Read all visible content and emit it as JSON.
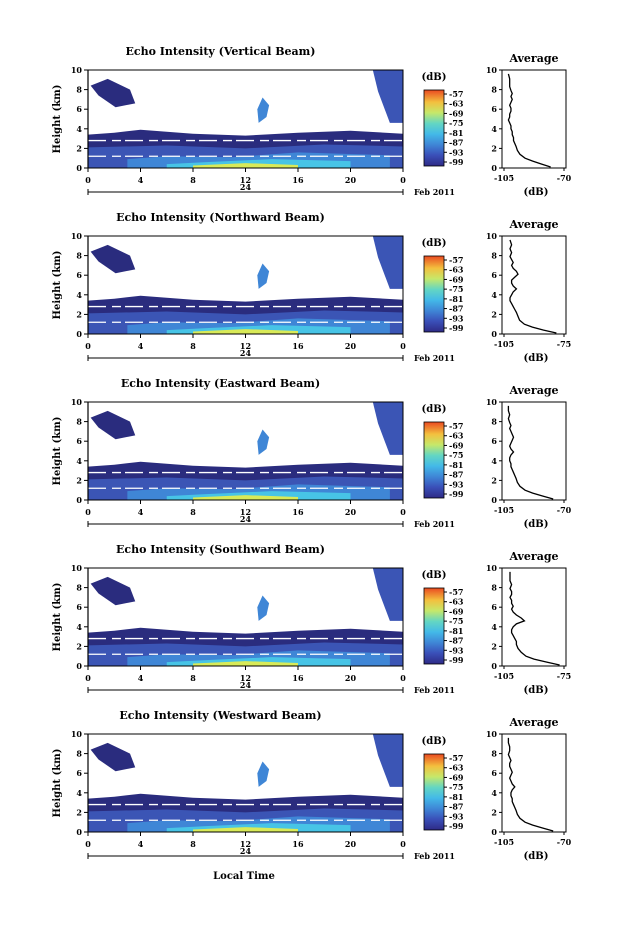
{
  "figure": {
    "xlabel": "Local Time"
  },
  "chart_data": [
    {
      "type": "heatmap",
      "title": "Echo Intensity (Vertical Beam)",
      "ylabel": "Height (km)",
      "ylim": [
        0,
        10
      ],
      "yticks": [
        "0",
        "2",
        "4",
        "6",
        "8",
        "10"
      ],
      "xlim": [
        0,
        24
      ],
      "xticks": [
        "0",
        "4",
        "8",
        "12",
        "16",
        "20",
        "0"
      ],
      "date_day": "24",
      "date_month": "Feb 2011",
      "colorbar_unit": "(dB)",
      "colorbar_ticks": [
        "-57",
        "-63",
        "-69",
        "-75",
        "-81",
        "-87",
        "-93",
        "-99"
      ],
      "profile": {
        "title": "Average",
        "xlabel": "(dB)",
        "xticks": [
          "-105",
          "-70"
        ],
        "xlim": [
          -110,
          -60
        ],
        "yticks": [
          "0",
          "2",
          "4",
          "6",
          "8",
          "10"
        ],
        "x": [
          -72,
          -79,
          -86,
          -92,
          -96,
          -98,
          -99,
          -100,
          -101,
          -101,
          -102,
          -102,
          -103,
          -103,
          -104,
          -105,
          -104,
          -104,
          -103,
          -103,
          -104,
          -103,
          -102,
          -103,
          -102,
          -103,
          -104,
          -104,
          -104,
          -105
        ],
        "y": [
          0.1,
          0.4,
          0.7,
          1.0,
          1.4,
          1.8,
          2.2,
          2.5,
          2.8,
          3.1,
          3.4,
          3.7,
          4.0,
          4.3,
          4.6,
          4.9,
          5.2,
          5.5,
          5.8,
          6.1,
          6.4,
          6.7,
          7.0,
          7.3,
          7.6,
          7.9,
          8.3,
          8.7,
          9.1,
          9.6
        ]
      }
    },
    {
      "type": "heatmap",
      "title": "Echo Intensity (Northward Beam)",
      "ylabel": "Height (km)",
      "ylim": [
        0,
        10
      ],
      "yticks": [
        "0",
        "2",
        "4",
        "6",
        "8",
        "10"
      ],
      "xlim": [
        0,
        24
      ],
      "xticks": [
        "0",
        "4",
        "8",
        "12",
        "16",
        "20",
        "0"
      ],
      "date_day": "24",
      "date_month": "Feb 2011",
      "colorbar_unit": "(dB)",
      "colorbar_ticks": [
        "-57",
        "-63",
        "-69",
        "-75",
        "-81",
        "-87",
        "-93",
        "-99"
      ],
      "profile": {
        "title": "Average",
        "xlabel": "(dB)",
        "xticks": [
          "-105",
          "-75"
        ],
        "xlim": [
          -110,
          -70
        ],
        "yticks": [
          "0",
          "2",
          "4",
          "6",
          "8",
          "10"
        ],
        "x": [
          -76,
          -84,
          -91,
          -96,
          -99,
          -100,
          -101,
          -102,
          -103,
          -104,
          -105,
          -105,
          -104,
          -103,
          -101,
          -103,
          -104,
          -104,
          -102,
          -100,
          -101,
          -103,
          -104,
          -103,
          -104,
          -105,
          -104,
          -105,
          -104,
          -105
        ],
        "y": [
          0.1,
          0.4,
          0.7,
          1.0,
          1.4,
          1.8,
          2.2,
          2.5,
          2.8,
          3.1,
          3.4,
          3.7,
          4.0,
          4.3,
          4.6,
          4.9,
          5.2,
          5.5,
          5.8,
          6.1,
          6.4,
          6.7,
          7.0,
          7.3,
          7.6,
          7.9,
          8.3,
          8.7,
          9.1,
          9.6
        ]
      }
    },
    {
      "type": "heatmap",
      "title": "Echo Intensity (Eastward Beam)",
      "ylabel": "Height (km)",
      "ylim": [
        0,
        10
      ],
      "yticks": [
        "0",
        "2",
        "4",
        "6",
        "8",
        "10"
      ],
      "xlim": [
        0,
        24
      ],
      "xticks": [
        "0",
        "4",
        "8",
        "12",
        "16",
        "20",
        "0"
      ],
      "date_day": "24",
      "date_month": "Feb 2011",
      "colorbar_unit": "(dB)",
      "colorbar_ticks": [
        "-57",
        "-63",
        "-69",
        "-75",
        "-81",
        "-87",
        "-93",
        "-99"
      ],
      "profile": {
        "title": "Average",
        "xlabel": "(dB)",
        "xticks": [
          "-105",
          "-70"
        ],
        "xlim": [
          -110,
          -60
        ],
        "yticks": [
          "0",
          "2",
          "4",
          "6",
          "8",
          "10"
        ],
        "x": [
          -70,
          -78,
          -86,
          -92,
          -96,
          -98,
          -99,
          -100,
          -101,
          -102,
          -103,
          -103,
          -104,
          -104,
          -103,
          -101,
          -103,
          -104,
          -103,
          -102,
          -101,
          -102,
          -103,
          -104,
          -103,
          -104,
          -105,
          -104,
          -105,
          -105
        ],
        "y": [
          0.1,
          0.4,
          0.7,
          1.0,
          1.4,
          1.8,
          2.2,
          2.5,
          2.8,
          3.1,
          3.4,
          3.7,
          4.0,
          4.3,
          4.6,
          4.9,
          5.2,
          5.5,
          5.8,
          6.1,
          6.4,
          6.7,
          7.0,
          7.3,
          7.6,
          7.9,
          8.3,
          8.7,
          9.1,
          9.6
        ]
      }
    },
    {
      "type": "heatmap",
      "title": "Echo Intensity (Southward Beam)",
      "ylabel": "Height (km)",
      "ylim": [
        0,
        10
      ],
      "yticks": [
        "0",
        "2",
        "4",
        "6",
        "8",
        "10"
      ],
      "xlim": [
        0,
        24
      ],
      "xticks": [
        "0",
        "4",
        "8",
        "12",
        "16",
        "20",
        "0"
      ],
      "date_day": "24",
      "date_month": "Feb 2011",
      "colorbar_unit": "(dB)",
      "colorbar_ticks": [
        "-57",
        "-63",
        "-69",
        "-75",
        "-81",
        "-87",
        "-93",
        "-99"
      ],
      "profile": {
        "title": "Average",
        "xlabel": "(dB)",
        "xticks": [
          "-105",
          "-75"
        ],
        "xlim": [
          -110,
          -70
        ],
        "yticks": [
          "0",
          "2",
          "4",
          "6",
          "8",
          "10"
        ],
        "x": [
          -74,
          -82,
          -90,
          -95,
          -98,
          -100,
          -101,
          -101,
          -102,
          -103,
          -104,
          -104,
          -103,
          -101,
          -96,
          -98,
          -101,
          -103,
          -104,
          -103,
          -104,
          -104,
          -105,
          -104,
          -104,
          -105,
          -104,
          -105,
          -105,
          -105
        ],
        "y": [
          0.1,
          0.4,
          0.7,
          1.0,
          1.4,
          1.8,
          2.2,
          2.5,
          2.8,
          3.1,
          3.4,
          3.7,
          4.0,
          4.3,
          4.6,
          4.9,
          5.2,
          5.5,
          5.8,
          6.1,
          6.4,
          6.7,
          7.0,
          7.3,
          7.6,
          7.9,
          8.3,
          8.7,
          9.1,
          9.6
        ]
      }
    },
    {
      "type": "heatmap",
      "title": "Echo Intensity (Westward Beam)",
      "ylabel": "Height (km)",
      "ylim": [
        0,
        10
      ],
      "yticks": [
        "0",
        "2",
        "4",
        "6",
        "8",
        "10"
      ],
      "xlim": [
        0,
        24
      ],
      "xticks": [
        "0",
        "4",
        "8",
        "12",
        "16",
        "20",
        "0"
      ],
      "date_day": "24",
      "date_month": "Feb 2011",
      "colorbar_unit": "(dB)",
      "colorbar_ticks": [
        "-57",
        "-63",
        "-69",
        "-75",
        "-81",
        "-87",
        "-93",
        "-99"
      ],
      "profile": {
        "title": "Average",
        "xlabel": "(dB)",
        "xticks": [
          "-105",
          "-70"
        ],
        "xlim": [
          -110,
          -60
        ],
        "yticks": [
          "0",
          "2",
          "4",
          "6",
          "8",
          "10"
        ],
        "x": [
          -70,
          -78,
          -86,
          -92,
          -96,
          -98,
          -99,
          -100,
          -101,
          -102,
          -102,
          -103,
          -103,
          -102,
          -100,
          -102,
          -103,
          -104,
          -103,
          -102,
          -103,
          -104,
          -104,
          -103,
          -104,
          -105,
          -104,
          -104,
          -105,
          -105
        ],
        "y": [
          0.1,
          0.4,
          0.7,
          1.0,
          1.4,
          1.8,
          2.2,
          2.5,
          2.8,
          3.1,
          3.4,
          3.7,
          4.0,
          4.3,
          4.6,
          4.9,
          5.2,
          5.5,
          5.8,
          6.1,
          6.4,
          6.7,
          7.0,
          7.3,
          7.6,
          7.9,
          8.3,
          8.7,
          9.1,
          9.6
        ]
      }
    }
  ]
}
